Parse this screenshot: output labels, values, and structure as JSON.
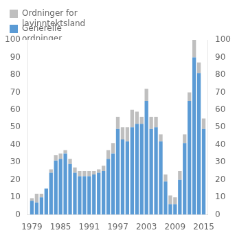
{
  "chart_data": {
    "type": "bar",
    "stacked": true,
    "x": [
      1979,
      1980,
      1981,
      1982,
      1983,
      1984,
      1985,
      1986,
      1987,
      1988,
      1989,
      1990,
      1991,
      1992,
      1993,
      1994,
      1995,
      1996,
      1997,
      1998,
      1999,
      2000,
      2001,
      2002,
      2003,
      2004,
      2005,
      2006,
      2007,
      2008,
      2009,
      2010,
      2011,
      2012,
      2013,
      2014,
      2015
    ],
    "series": [
      {
        "name": "Generelle\nordninger",
        "color": "#5B9BD5",
        "values": [
          8,
          7,
          10,
          15,
          24,
          31,
          32,
          35,
          29,
          24,
          22,
          22,
          22,
          23,
          24,
          25,
          32,
          35,
          49,
          43,
          42,
          50,
          52,
          52,
          65,
          49,
          50,
          42,
          19,
          6,
          6,
          20,
          41,
          65,
          90,
          81,
          49
        ]
      },
      {
        "name": "Ordninger for\nlavinntektsland",
        "color": "#BFBFBF",
        "values": [
          1.5,
          5,
          2,
          0,
          2,
          3,
          3,
          2,
          3,
          3,
          3,
          3,
          3,
          2,
          2,
          3,
          5,
          6,
          7,
          7,
          8,
          10,
          7,
          4,
          7,
          7,
          6,
          4,
          4,
          5,
          4,
          5,
          5,
          5,
          10,
          6,
          6
        ]
      }
    ],
    "xlim": [
      1978.2,
      2015.8
    ],
    "xticks": [
      1979,
      1985,
      1991,
      1997,
      2003,
      2009,
      2015
    ],
    "ylim": [
      0,
      100
    ],
    "yticks": [
      0,
      10,
      20,
      30,
      40,
      50,
      60,
      70,
      80,
      90,
      100
    ],
    "y2lim": [
      0,
      100
    ],
    "y2ticks": [
      0,
      10,
      20,
      30,
      40,
      50,
      60,
      70,
      80,
      90,
      100
    ],
    "grid": false,
    "legend": "upper left"
  }
}
